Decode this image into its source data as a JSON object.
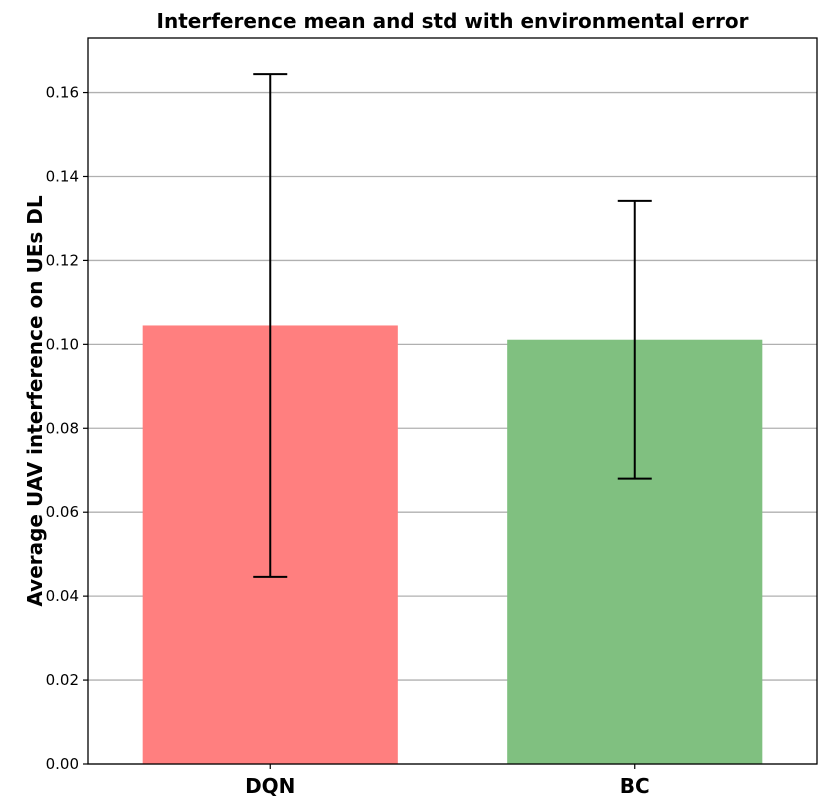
{
  "chart_data": {
    "type": "bar",
    "title": "Interference mean and std with environmental error",
    "xlabel": "",
    "ylabel": "Average UAV interference on UEs DL",
    "categories": [
      "DQN",
      "BC"
    ],
    "values": [
      0.1045,
      0.1011
    ],
    "error": [
      0.0599,
      0.0331
    ],
    "colors": [
      "#ff7f7f",
      "#80c080"
    ],
    "ylim": [
      0,
      0.173
    ],
    "yticks": [
      0.0,
      0.02,
      0.04,
      0.06,
      0.08,
      0.1,
      0.12,
      0.14,
      0.16
    ],
    "ytick_labels": [
      "0.00",
      "0.02",
      "0.04",
      "0.06",
      "0.08",
      "0.10",
      "0.12",
      "0.14",
      "0.16"
    ],
    "grid": "horizontal",
    "legend": "none"
  }
}
